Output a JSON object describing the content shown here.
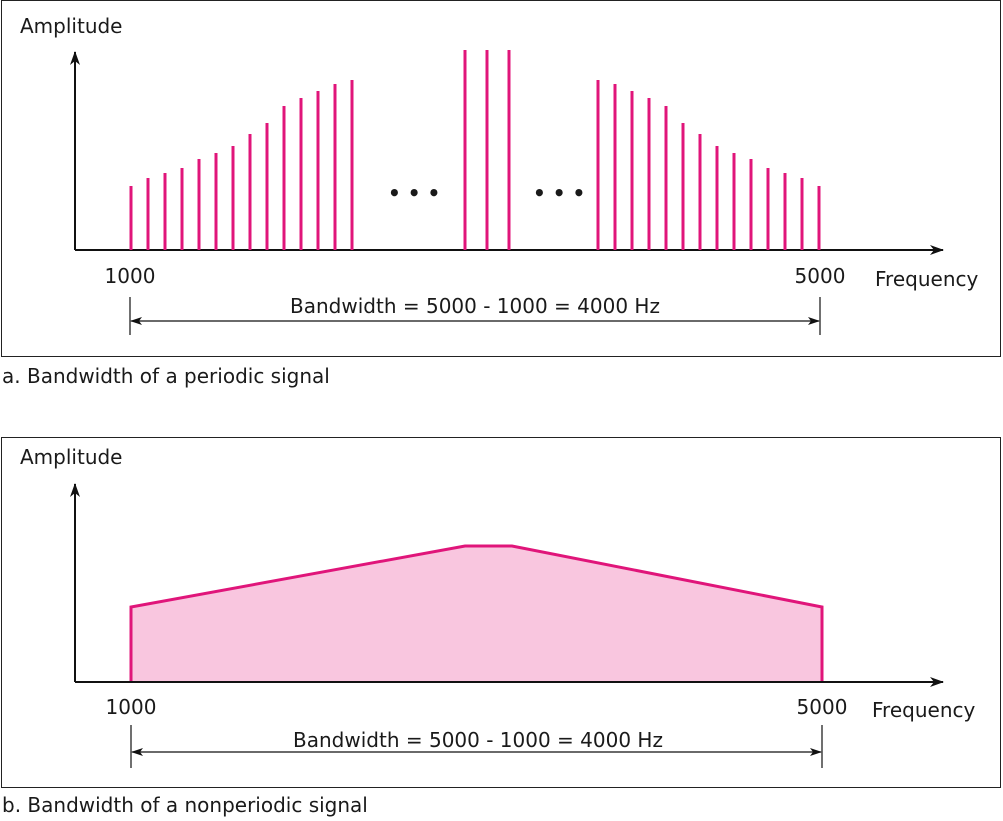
{
  "colors": {
    "signal": "#e0157a",
    "fill": "#f9c6df",
    "axis": "#111111"
  },
  "panel_a": {
    "y_axis_label": "Amplitude",
    "x_axis_label": "Frequency",
    "tick_start": "1000",
    "tick_end": "5000",
    "bandwidth_text": "Bandwidth = 5000 - 1000 = 4000 Hz",
    "ellipsis_left": "• • •",
    "ellipsis_right": "• • •",
    "caption": "a. Bandwidth of a periodic signal"
  },
  "panel_b": {
    "y_axis_label": "Amplitude",
    "x_axis_label": "Frequency",
    "tick_start": "1000",
    "tick_end": "5000",
    "bandwidth_text": "Bandwidth = 5000 - 1000 = 4000 Hz",
    "caption": "b. Bandwidth of a nonperiodic signal"
  }
}
